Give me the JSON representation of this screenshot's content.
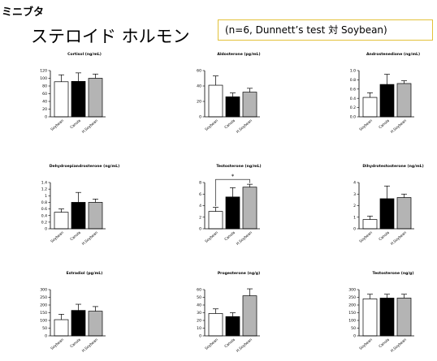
{
  "header": {
    "tag": "ミニブタ",
    "title": "ステロイド ホルモン",
    "note": "(n=6, Dunnett’s test 対 Soybean)"
  },
  "colors": {
    "soybean": "#ffffff",
    "canola": "#000000",
    "h_soybean": "#b4b4b4",
    "bracket": "#000000"
  },
  "chart_data": [
    {
      "type": "bar",
      "title": "Cortisol (ng/mL)",
      "categories": [
        "Soybean",
        "Canola",
        "H.Soybean"
      ],
      "values": [
        91,
        92,
        100
      ],
      "errors": [
        18,
        22,
        11
      ],
      "ylim": [
        0,
        120
      ],
      "yticks": [
        "0",
        "20",
        "40",
        "60",
        "80",
        "100",
        "120"
      ],
      "ytick_values": [
        0,
        20,
        40,
        60,
        80,
        100,
        120
      ]
    },
    {
      "type": "bar",
      "title": "Aldosterone (pg/mL)",
      "categories": [
        "Soybean",
        "Canola",
        "H.Soybean"
      ],
      "values": [
        41,
        26,
        32
      ],
      "errors": [
        12,
        5,
        5
      ],
      "ylim": [
        0,
        60
      ],
      "yticks": [
        "0",
        "20",
        "40",
        "60"
      ],
      "ytick_values": [
        0,
        20,
        40,
        60
      ]
    },
    {
      "type": "bar",
      "title": "Androstenedione (ng/mL)",
      "categories": [
        "Soybean",
        "Canola",
        "H.Soybean"
      ],
      "values": [
        0.42,
        0.7,
        0.72
      ],
      "errors": [
        0.1,
        0.22,
        0.06
      ],
      "ylim": [
        0,
        1.0
      ],
      "yticks": [
        "0.0",
        "0.2",
        "0.4",
        "0.6",
        "0.8",
        "1.0"
      ],
      "ytick_values": [
        0,
        0.2,
        0.4,
        0.6,
        0.8,
        1.0
      ]
    },
    {
      "type": "bar",
      "title": "Dehydroepiandrosterone (ng/mL)",
      "categories": [
        "Soybean",
        "Canola",
        "H.Soybean"
      ],
      "values": [
        0.5,
        0.8,
        0.8
      ],
      "errors": [
        0.1,
        0.3,
        0.1
      ],
      "ylim": [
        0,
        1.4
      ],
      "yticks": [
        "0",
        "0.2",
        "0.4",
        "0.6",
        "0.8",
        "1",
        "1.2",
        "1.4"
      ],
      "ytick_values": [
        0,
        0.2,
        0.4,
        0.6,
        0.8,
        1.0,
        1.2,
        1.4
      ]
    },
    {
      "type": "bar",
      "title": "Testosterone (ng/mL)",
      "categories": [
        "Soybean",
        "Canola",
        "H.Soybean"
      ],
      "values": [
        3.0,
        5.5,
        7.2
      ],
      "errors": [
        0.7,
        1.6,
        0.5
      ],
      "ylim": [
        0,
        8
      ],
      "yticks": [
        "0",
        "2",
        "4",
        "6",
        "8"
      ],
      "ytick_values": [
        0,
        2,
        4,
        6,
        8
      ],
      "significance": "*"
    },
    {
      "type": "bar",
      "title": "Dihydrotestosterone (ng/mL)",
      "categories": [
        "Soybean",
        "Canola",
        "H.Soybean"
      ],
      "values": [
        0.8,
        2.6,
        2.7
      ],
      "errors": [
        0.3,
        1.1,
        0.3
      ],
      "ylim": [
        0,
        4
      ],
      "yticks": [
        "0",
        "1",
        "2",
        "3",
        "4"
      ],
      "ytick_values": [
        0,
        1,
        2,
        3,
        4
      ]
    },
    {
      "type": "bar",
      "title": "Estradiol (pg/mL)",
      "categories": [
        "Soybean",
        "Canola",
        "H.Soybean"
      ],
      "values": [
        105,
        165,
        160
      ],
      "errors": [
        35,
        40,
        30
      ],
      "ylim": [
        0,
        300
      ],
      "yticks": [
        "0",
        "50",
        "100",
        "150",
        "200",
        "250",
        "300"
      ],
      "ytick_values": [
        0,
        50,
        100,
        150,
        200,
        250,
        300
      ]
    },
    {
      "type": "bar",
      "title": "Progesterone (ng/g)",
      "categories": [
        "Soybean",
        "Canola",
        "H.Soybean"
      ],
      "values": [
        29,
        25,
        52
      ],
      "errors": [
        6,
        5,
        9
      ],
      "ylim": [
        0,
        60
      ],
      "yticks": [
        "0",
        "10",
        "20",
        "30",
        "40",
        "50",
        "60"
      ],
      "ytick_values": [
        0,
        10,
        20,
        30,
        40,
        50,
        60
      ]
    },
    {
      "type": "bar",
      "title": "Testosterone (ng/g)",
      "categories": [
        "Soybean",
        "Canola",
        "H.Soybean"
      ],
      "values": [
        240,
        245,
        245
      ],
      "errors": [
        30,
        25,
        25
      ],
      "ylim": [
        0,
        300
      ],
      "yticks": [
        "0",
        "50",
        "100",
        "150",
        "200",
        "250",
        "300"
      ],
      "ytick_values": [
        0,
        50,
        100,
        150,
        200,
        250,
        300
      ]
    }
  ]
}
